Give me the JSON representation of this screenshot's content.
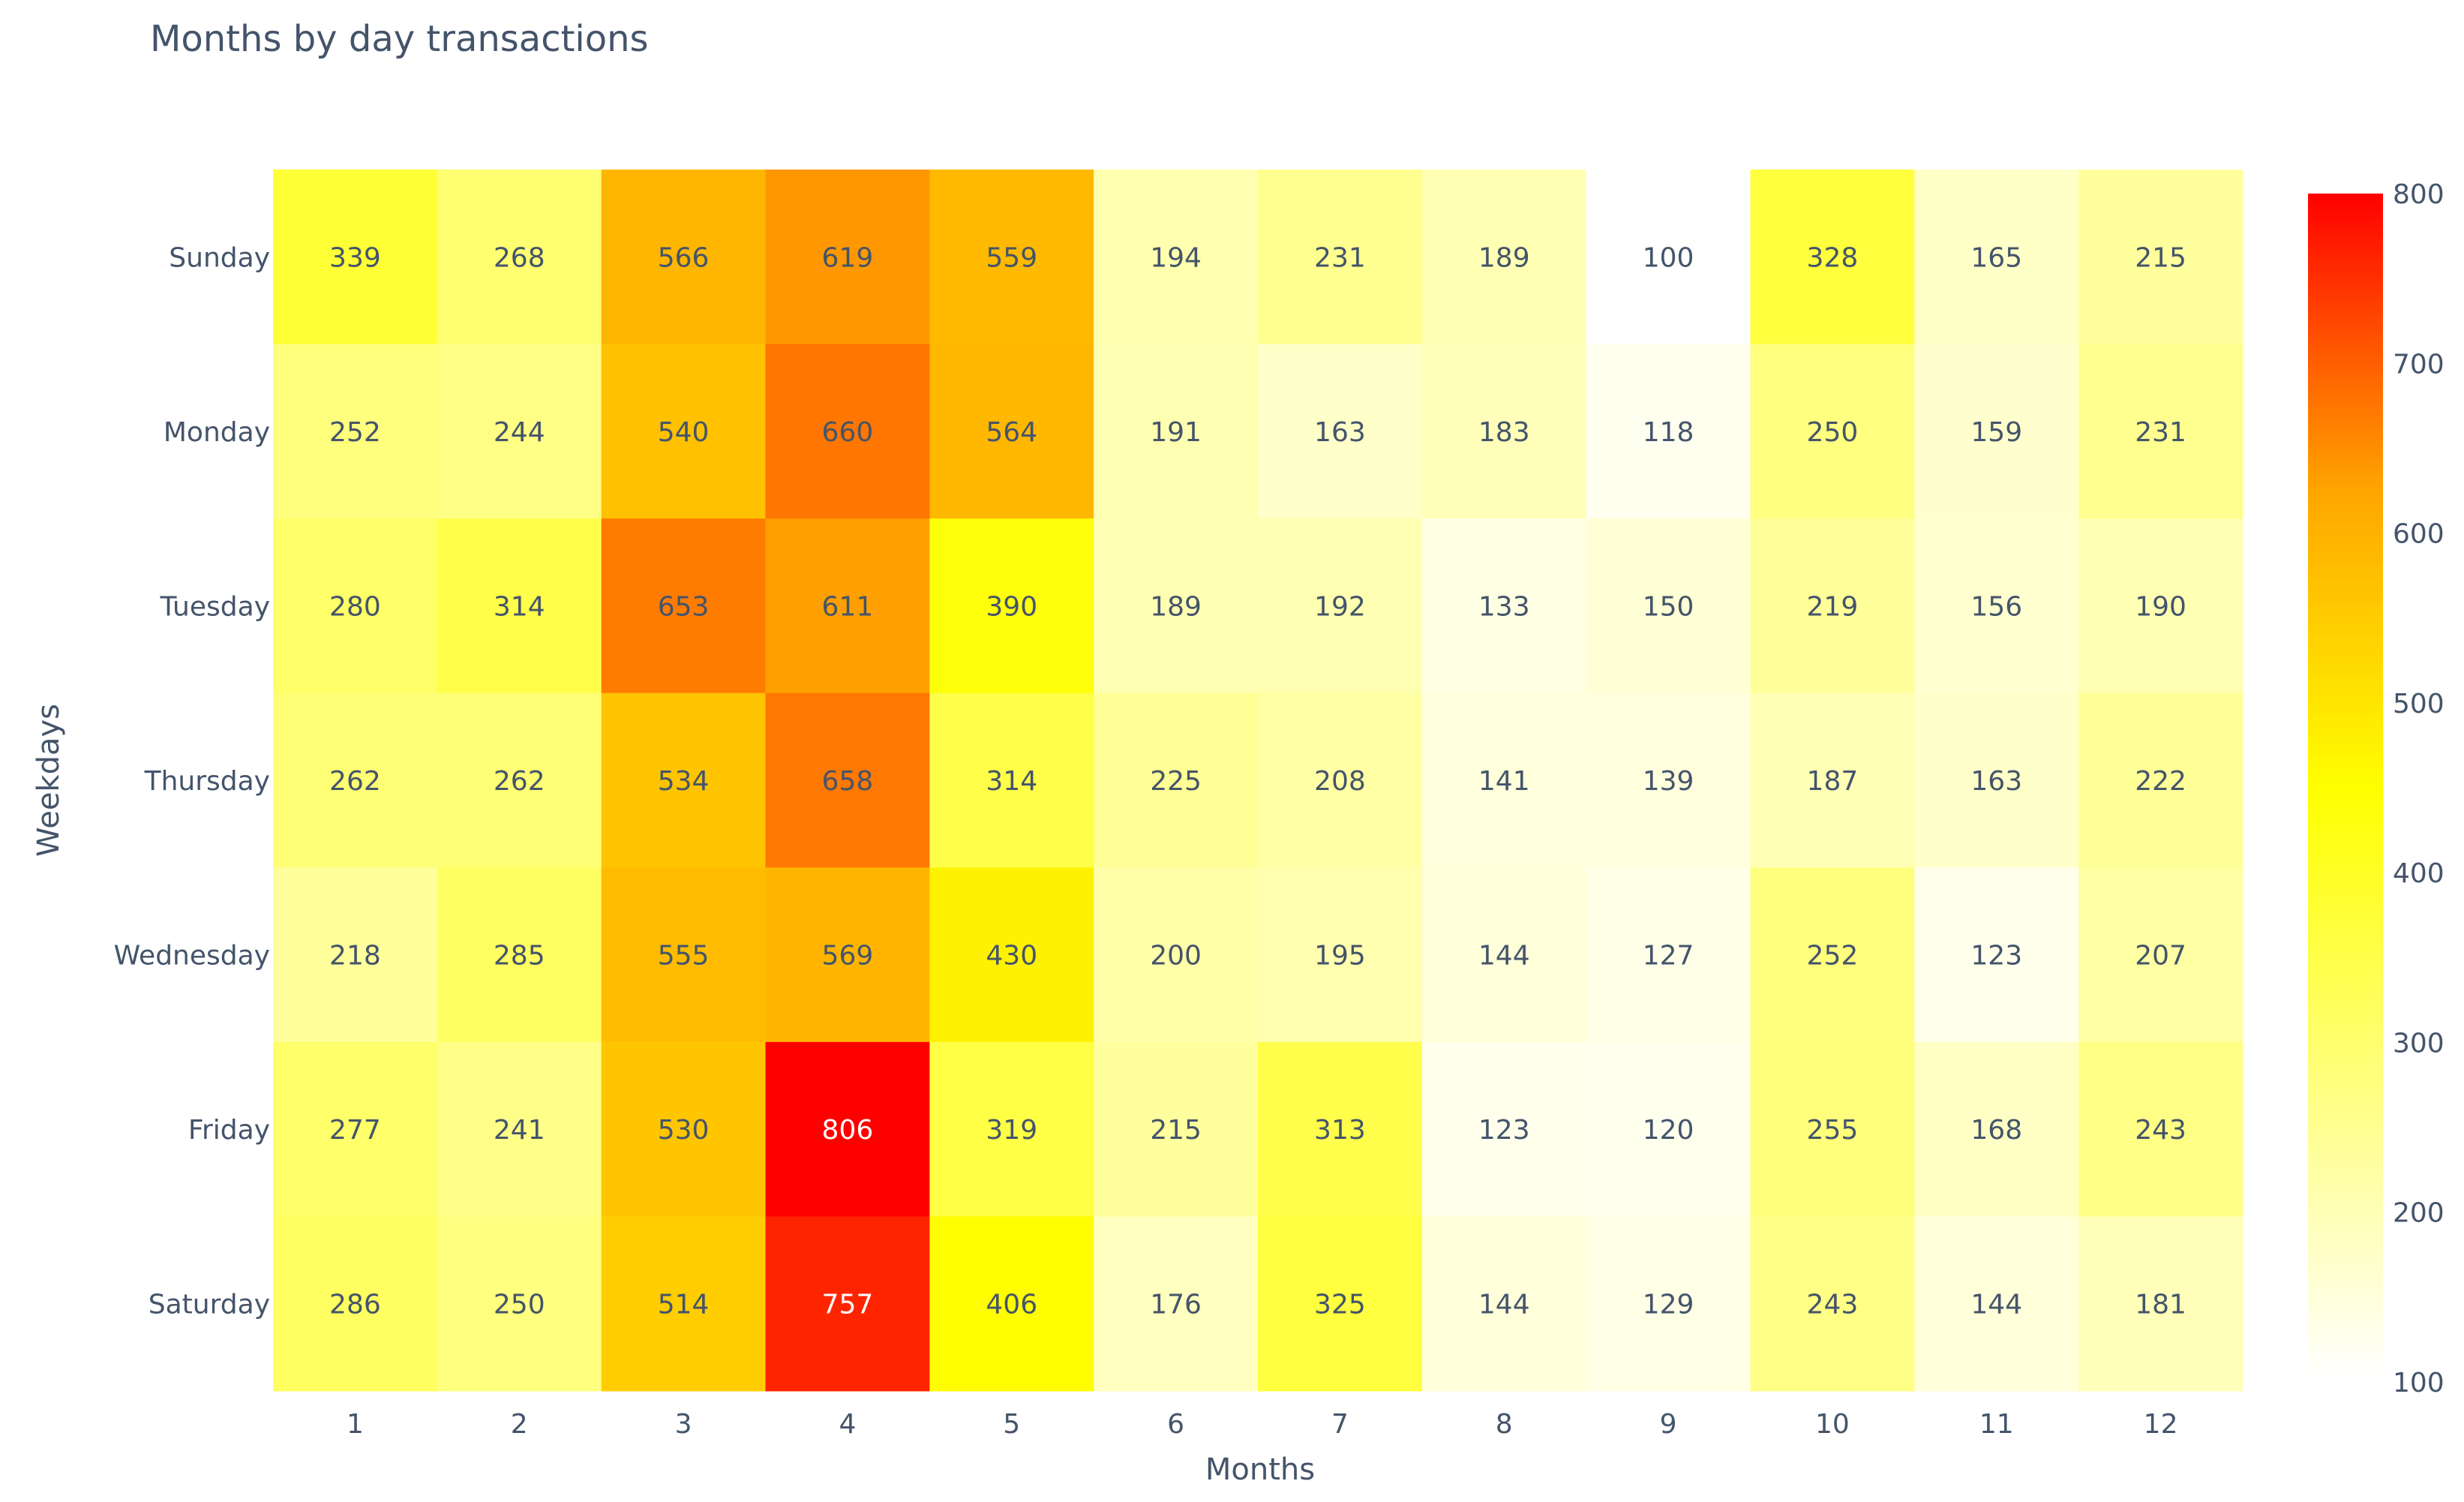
{
  "chart_data": {
    "type": "heatmap",
    "title": "Months by day transactions",
    "xlabel": "Months",
    "ylabel": "Weekdays",
    "x": [
      "1",
      "2",
      "3",
      "4",
      "5",
      "6",
      "7",
      "8",
      "9",
      "10",
      "11",
      "12"
    ],
    "y": [
      "Sunday",
      "Monday",
      "Tuesday",
      "Thursday",
      "Wednesday",
      "Friday",
      "Saturday"
    ],
    "z": [
      [
        339,
        268,
        566,
        619,
        559,
        194,
        231,
        189,
        100,
        328,
        165,
        215
      ],
      [
        252,
        244,
        540,
        660,
        564,
        191,
        163,
        183,
        118,
        250,
        159,
        231
      ],
      [
        280,
        314,
        653,
        611,
        390,
        189,
        192,
        133,
        150,
        219,
        156,
        190
      ],
      [
        262,
        262,
        534,
        658,
        314,
        225,
        208,
        141,
        139,
        187,
        163,
        222
      ],
      [
        218,
        285,
        555,
        569,
        430,
        200,
        195,
        144,
        127,
        252,
        123,
        207
      ],
      [
        277,
        241,
        530,
        806,
        319,
        215,
        313,
        123,
        120,
        255,
        168,
        243
      ],
      [
        286,
        250,
        514,
        757,
        406,
        176,
        325,
        144,
        129,
        243,
        144,
        181
      ]
    ],
    "colorscale": {
      "range": [
        100,
        800
      ],
      "ticks": [
        100,
        200,
        300,
        400,
        500,
        600,
        700,
        800
      ],
      "colors": [
        "#ffffff",
        "#ffff00",
        "#ff0000"
      ]
    },
    "show_cell_values": true,
    "grid": false
  }
}
